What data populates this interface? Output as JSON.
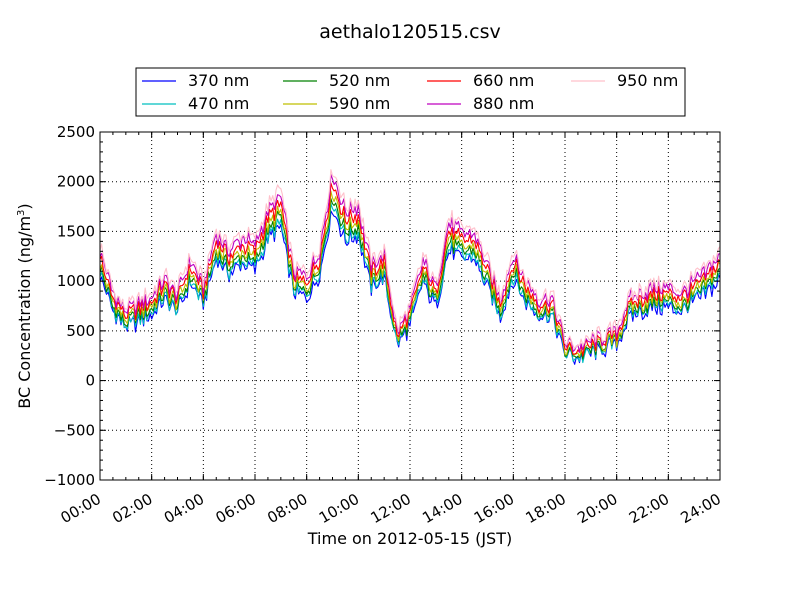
{
  "chart_data": {
    "type": "line",
    "title": "aethalo120515.csv",
    "xlabel": "Time on 2012-05-15 (JST)",
    "ylabel": "BC Concentration (ng/m³)",
    "ylabel_main": "BC Concentration (ng/m",
    "ylabel_sup": "3",
    "ylabel_end": ")",
    "xlim": [
      "00:00",
      "24:00"
    ],
    "ylim": [
      -1000,
      2500
    ],
    "x_ticks": [
      "00:00",
      "02:00",
      "04:00",
      "06:00",
      "08:00",
      "10:00",
      "12:00",
      "14:00",
      "16:00",
      "18:00",
      "20:00",
      "22:00",
      "24:00"
    ],
    "y_ticks": [
      "2500",
      "2000",
      "1500",
      "1000",
      "500",
      "0",
      "−500",
      "−1000"
    ],
    "y_tick_values": [
      2500,
      2000,
      1500,
      1000,
      500,
      0,
      -500,
      -1000
    ],
    "grid": true,
    "legend_position": "top",
    "x_hours": [
      0,
      0.5,
      1,
      1.5,
      2,
      2.5,
      3,
      3.5,
      4,
      4.5,
      5,
      5.5,
      6,
      6.5,
      7,
      7.5,
      8,
      8.5,
      9,
      9.5,
      10,
      10.5,
      11,
      11.5,
      12,
      12.5,
      13,
      13.5,
      14,
      14.5,
      15,
      15.5,
      16,
      16.5,
      17,
      17.5,
      18,
      18.5,
      19,
      19.5,
      20,
      20.5,
      21,
      21.5,
      22,
      22.5,
      23,
      23.5,
      24
    ],
    "base_values": [
      1150,
      750,
      580,
      650,
      720,
      880,
      750,
      1050,
      820,
      1300,
      1150,
      1250,
      1200,
      1500,
      1650,
      950,
      900,
      1150,
      1850,
      1500,
      1550,
      1000,
      1100,
      400,
      600,
      1050,
      800,
      1400,
      1300,
      1300,
      1000,
      700,
      1100,
      850,
      700,
      700,
      300,
      250,
      300,
      350,
      400,
      700,
      750,
      800,
      800,
      750,
      850,
      950,
      1100
    ],
    "series": [
      {
        "name": "370 nm",
        "color": "#0000ff",
        "offset": -20,
        "scale": 0.95
      },
      {
        "name": "470 nm",
        "color": "#00bfbf",
        "offset": -10,
        "scale": 0.97
      },
      {
        "name": "520 nm",
        "color": "#008000",
        "offset": 0,
        "scale": 1.0
      },
      {
        "name": "590 nm",
        "color": "#bfbf00",
        "offset": 10,
        "scale": 1.03
      },
      {
        "name": "660 nm",
        "color": "#ff0000",
        "offset": 30,
        "scale": 1.06
      },
      {
        "name": "880 nm",
        "color": "#bf00bf",
        "offset": 60,
        "scale": 1.09
      },
      {
        "name": "950 nm",
        "color": "#ffc0cb",
        "offset": 80,
        "scale": 1.12
      }
    ]
  }
}
